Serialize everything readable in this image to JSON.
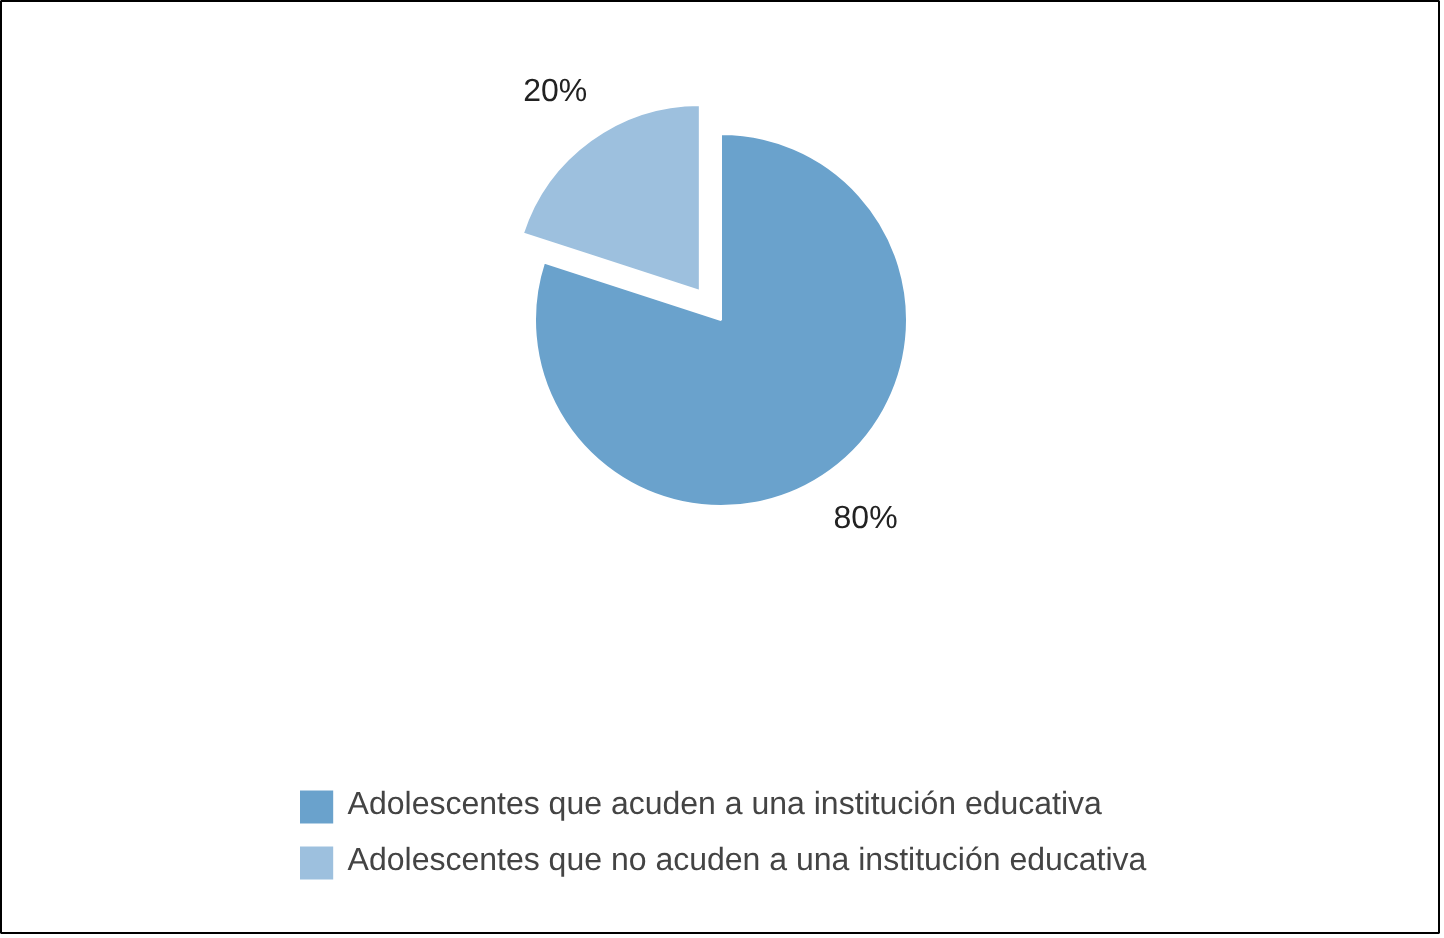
{
  "chart_data": {
    "type": "pie",
    "categories": [
      "Adolescentes que acuden a una institución educativa",
      "Adolescentes que no acuden a una institución educativa"
    ],
    "values": [
      80,
      20
    ],
    "colors": [
      "#6aa2cc",
      "#9dc0de"
    ],
    "value_labels": [
      "80%",
      "20%"
    ],
    "legend": "bottom"
  }
}
